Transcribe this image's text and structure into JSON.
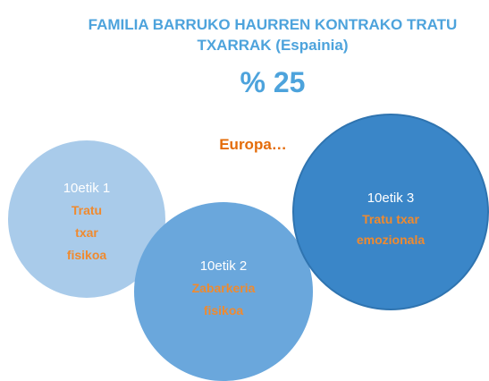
{
  "title": "FAMILIA BARRUKO HAURREN KONTRAKO TRATU TXARRAK (Espainia)",
  "percentage": "% 25",
  "region": "Europa…",
  "circles": [
    {
      "ratio": "10etik 1",
      "label": "Tratu txar fisikoa"
    },
    {
      "ratio": "10etik 2",
      "label": "Zabarkeria fisikoa"
    },
    {
      "ratio": "10etik 3",
      "label": "Tratu txar emozionala"
    }
  ]
}
